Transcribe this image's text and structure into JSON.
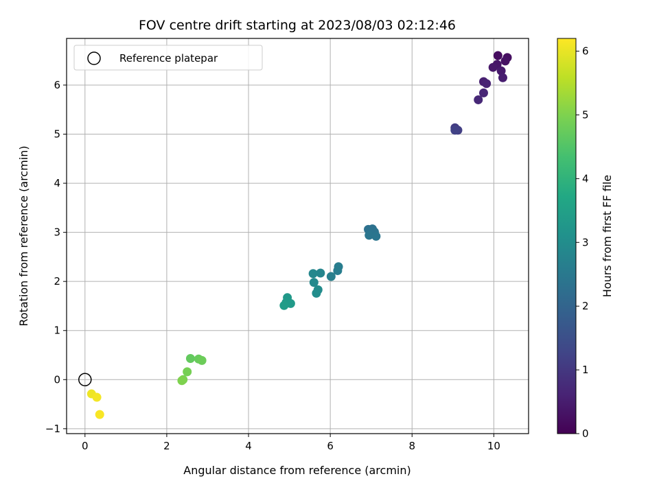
{
  "chart_data": {
    "type": "scatter",
    "title": "FOV centre drift starting at 2023/08/03 02:12:46",
    "xlabel": "Angular distance from reference (arcmin)",
    "ylabel": "Rotation from reference (arcmin)",
    "xlim": [
      -0.45,
      10.85
    ],
    "ylim": [
      -1.1,
      6.95
    ],
    "xticks": [
      "0",
      "2",
      "4",
      "6",
      "8",
      "10"
    ],
    "yticks": [
      "−1",
      "0",
      "1",
      "2",
      "3",
      "4",
      "5",
      "6"
    ],
    "grid": true,
    "legend": {
      "position": "top-left",
      "entries": [
        "Reference platepar"
      ]
    },
    "reference_point": {
      "x": 0,
      "y": 0
    },
    "colorbar": {
      "label": "Hours from first FF file",
      "range": [
        0,
        6.2
      ],
      "ticks": [
        "0",
        "1",
        "2",
        "3",
        "4",
        "5",
        "6"
      ],
      "colormap": "viridis"
    },
    "points": [
      {
        "x": 10.1,
        "y": 6.6,
        "h": 0.2
      },
      {
        "x": 10.33,
        "y": 6.56,
        "h": 0.25
      },
      {
        "x": 10.28,
        "y": 6.49,
        "h": 0.3
      },
      {
        "x": 10.08,
        "y": 6.42,
        "h": 0.35
      },
      {
        "x": 9.98,
        "y": 6.36,
        "h": 0.4
      },
      {
        "x": 10.18,
        "y": 6.29,
        "h": 0.45
      },
      {
        "x": 10.22,
        "y": 6.15,
        "h": 0.5
      },
      {
        "x": 9.75,
        "y": 6.07,
        "h": 0.55
      },
      {
        "x": 9.82,
        "y": 6.03,
        "h": 0.6
      },
      {
        "x": 9.75,
        "y": 5.84,
        "h": 0.65
      },
      {
        "x": 9.62,
        "y": 5.7,
        "h": 0.7
      },
      {
        "x": 9.05,
        "y": 5.13,
        "h": 1.1
      },
      {
        "x": 9.12,
        "y": 5.08,
        "h": 1.15
      },
      {
        "x": 9.05,
        "y": 5.08,
        "h": 1.2
      },
      {
        "x": 6.93,
        "y": 3.06,
        "h": 2.3
      },
      {
        "x": 7.03,
        "y": 3.07,
        "h": 2.3
      },
      {
        "x": 7.08,
        "y": 3.01,
        "h": 2.35
      },
      {
        "x": 6.98,
        "y": 2.98,
        "h": 2.35
      },
      {
        "x": 6.95,
        "y": 2.94,
        "h": 2.4
      },
      {
        "x": 7.12,
        "y": 2.92,
        "h": 2.4
      },
      {
        "x": 6.2,
        "y": 2.3,
        "h": 2.6
      },
      {
        "x": 6.18,
        "y": 2.22,
        "h": 2.6
      },
      {
        "x": 6.02,
        "y": 2.1,
        "h": 2.65
      },
      {
        "x": 5.76,
        "y": 2.17,
        "h": 2.8
      },
      {
        "x": 5.58,
        "y": 2.16,
        "h": 2.85
      },
      {
        "x": 5.6,
        "y": 1.98,
        "h": 2.9
      },
      {
        "x": 5.7,
        "y": 1.83,
        "h": 2.95
      },
      {
        "x": 5.66,
        "y": 1.76,
        "h": 3.0
      },
      {
        "x": 4.95,
        "y": 1.67,
        "h": 3.3
      },
      {
        "x": 4.92,
        "y": 1.57,
        "h": 3.35
      },
      {
        "x": 5.03,
        "y": 1.55,
        "h": 3.35
      },
      {
        "x": 4.87,
        "y": 1.51,
        "h": 3.4
      },
      {
        "x": 2.58,
        "y": 0.43,
        "h": 4.7
      },
      {
        "x": 2.78,
        "y": 0.42,
        "h": 4.75
      },
      {
        "x": 2.86,
        "y": 0.39,
        "h": 4.8
      },
      {
        "x": 2.5,
        "y": 0.16,
        "h": 4.9
      },
      {
        "x": 2.4,
        "y": 0.0,
        "h": 4.95
      },
      {
        "x": 2.37,
        "y": -0.02,
        "h": 5.0
      },
      {
        "x": 0.16,
        "y": -0.29,
        "h": 6.05
      },
      {
        "x": 0.29,
        "y": -0.36,
        "h": 6.1
      },
      {
        "x": 0.36,
        "y": -0.71,
        "h": 6.15
      }
    ]
  }
}
